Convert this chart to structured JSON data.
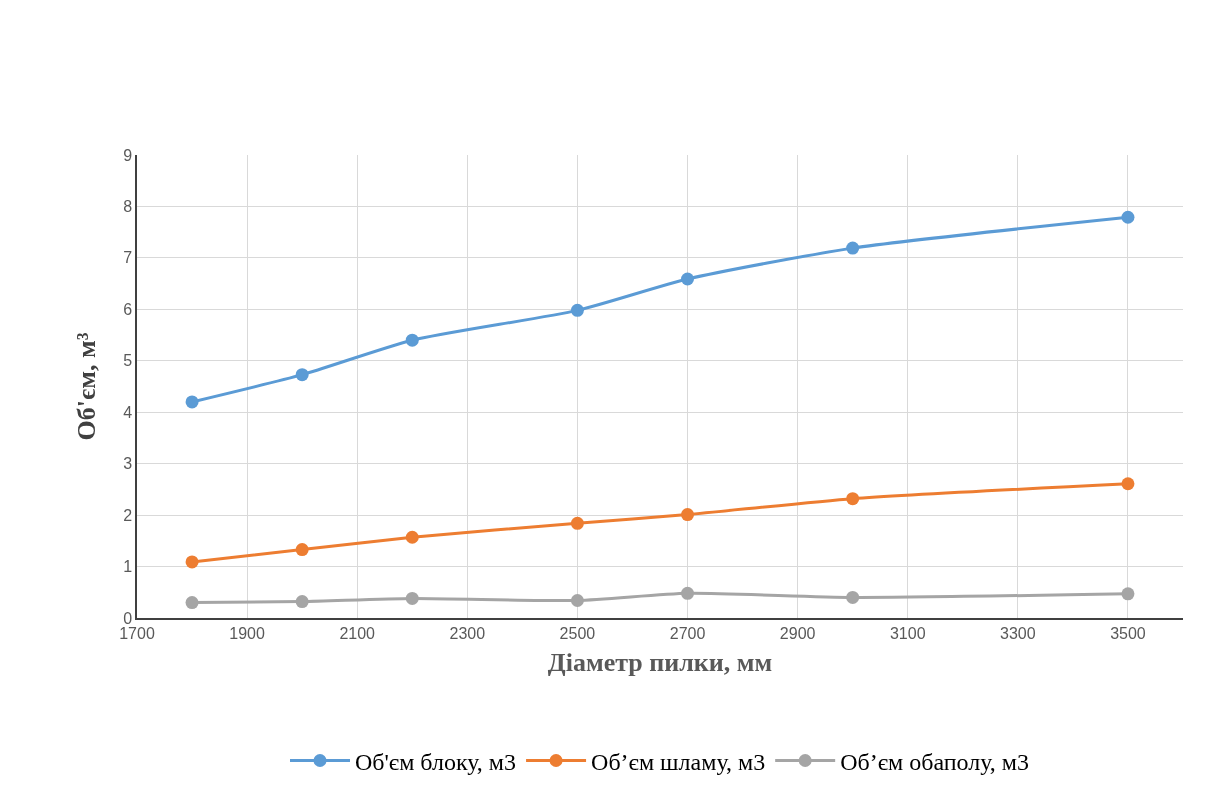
{
  "chart_data": {
    "type": "line",
    "xlabel": "Діаметр пилки, мм",
    "ylabel": "Об'єм, м³",
    "x": [
      1800,
      2000,
      2200,
      2500,
      2700,
      3000,
      3500
    ],
    "series": [
      {
        "name": "Об'єм блоку, м3",
        "color": "#5b9bd5",
        "values": [
          4.2,
          4.73,
          5.4,
          5.98,
          6.59,
          7.19,
          7.79
        ]
      },
      {
        "name": "Об’єм шламу, м3",
        "color": "#ed7d31",
        "values": [
          1.09,
          1.33,
          1.57,
          1.84,
          2.01,
          2.32,
          2.61
        ]
      },
      {
        "name": "Об’єм обаполу, м3",
        "color": "#a5a5a5",
        "values": [
          0.3,
          0.32,
          0.38,
          0.34,
          0.48,
          0.4,
          0.47
        ]
      }
    ],
    "xlim": [
      1700,
      3600
    ],
    "xticks": [
      1700,
      1900,
      2100,
      2300,
      2500,
      2700,
      2900,
      3100,
      3300,
      3500
    ],
    "ylim": [
      0,
      9
    ],
    "yticks": [
      0,
      1,
      2,
      3,
      4,
      5,
      6,
      7,
      8,
      9
    ],
    "grid": true,
    "legend": "bottom",
    "marker": "circle",
    "line_style": "solid"
  }
}
